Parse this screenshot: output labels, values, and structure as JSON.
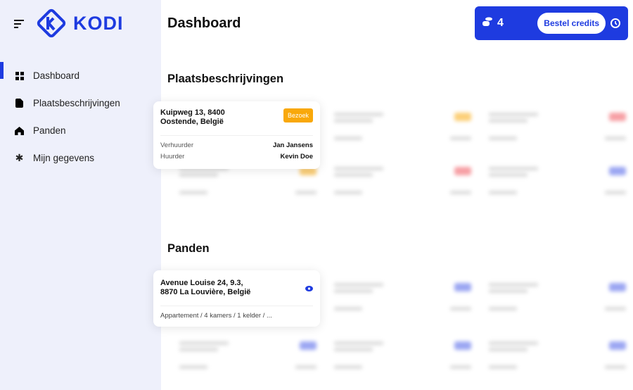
{
  "brand": {
    "name": "KODI",
    "color": "#1e3be0"
  },
  "sidebar": {
    "items": [
      {
        "label": "Dashboard",
        "icon": "grid-icon",
        "active": true
      },
      {
        "label": "Plaatsbeschrijvingen",
        "icon": "document-icon"
      },
      {
        "label": "Panden",
        "icon": "home-icon"
      },
      {
        "label": "Mijn gegevens",
        "icon": "gear-icon"
      }
    ]
  },
  "header": {
    "title": "Dashboard",
    "credits": "4",
    "order_label": "Bestel credits"
  },
  "sections": {
    "inspections": {
      "title": "Plaatsbeschrijvingen",
      "card": {
        "address_line1": "Kuipweg 13, 8400",
        "address_line2": "Oostende, België",
        "button": "Bezoek",
        "landlord_label": "Verhuurder",
        "landlord": "Jan Jansens",
        "tenant_label": "Huurder",
        "tenant": "Kevin Doe"
      }
    },
    "properties": {
      "title": "Panden",
      "card": {
        "address_line1": "Avenue Louise 24, 9.3,",
        "address_line2": "8870 La Louvière, België",
        "details": "Appartement / 4 kamers / 1 kelder / ..."
      }
    }
  },
  "colors": {
    "orange": "#f9a80a",
    "red": "#f0525b",
    "blue": "#4a5ee8"
  }
}
